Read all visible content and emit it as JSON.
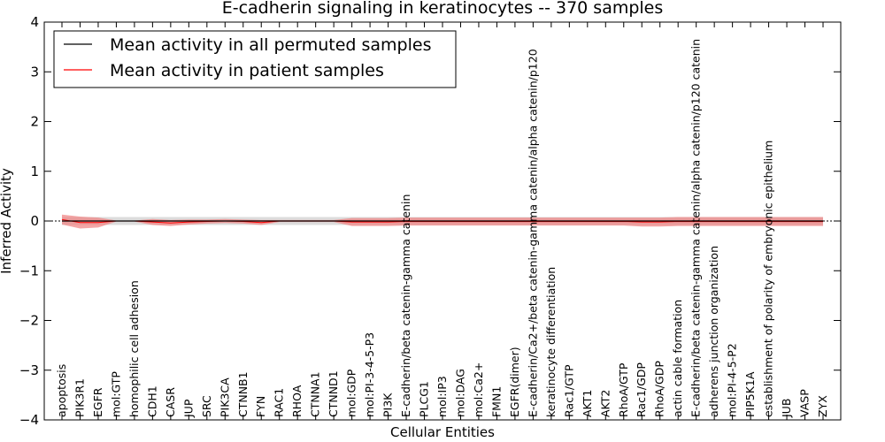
{
  "chart_data": {
    "type": "line",
    "title": "E-cadherin signaling in keratinocytes -- 370 samples",
    "xlabel": "Cellular Entities",
    "ylabel": "Inferred Activity",
    "ylim": [
      -4,
      4
    ],
    "yticks": [
      -4,
      -3,
      -2,
      -1,
      0,
      1,
      2,
      3,
      4
    ],
    "legend_position": "top-left",
    "categories": [
      "apoptosis",
      "PIK3R1",
      "EGFR",
      "mol:GTP",
      "homophilic cell adhesion",
      "CDH1",
      "CASR",
      "JUP",
      "SRC",
      "PIK3CA",
      "CTNNB1",
      "FYN",
      "RAC1",
      "RHOA",
      "CTNNA1",
      "CTNND1",
      "mol:GDP",
      "mol:PI-3-4-5-P3",
      "PI3K",
      "E-cadherin/beta catenin-gamma catenin",
      "PLCG1",
      "mol:IP3",
      "mol:DAG",
      "mol:Ca2+",
      "FMN1",
      "EGFR(dimer)",
      "E-cadherin/Ca2+/beta catenin-gamma catenin/alpha catenin/p120",
      "keratinocyte differentiation",
      "Rac1/GTP",
      "AKT1",
      "AKT2",
      "RhoA/GTP",
      "Rac1/GDP",
      "RhoA/GDP",
      "actin cable formation",
      "E-cadherin/beta catenin-gamma catenin/alpha catenin/p120 catenin",
      "adherens junction organization",
      "mol:PI-4-5-P2",
      "PIP5K1A",
      "establishment of polarity of embryonic epithelium",
      "JUB",
      "VASP",
      "ZYX"
    ],
    "series": [
      {
        "name": "Mean activity in all permuted samples",
        "color": "#000000",
        "band_color": "#bfbfbf",
        "values": [
          0.0,
          0.0,
          0.0,
          0.0,
          0.0,
          0.0,
          0.0,
          0.0,
          0.0,
          0.0,
          0.0,
          0.0,
          0.0,
          0.0,
          0.0,
          0.0,
          0.0,
          0.0,
          0.0,
          0.0,
          0.0,
          0.0,
          0.0,
          0.0,
          0.0,
          0.0,
          0.0,
          0.0,
          0.0,
          0.0,
          0.0,
          0.0,
          0.0,
          0.0,
          0.0,
          0.0,
          0.0,
          0.0,
          0.0,
          0.0,
          0.0,
          0.0,
          0.0
        ],
        "band": [
          0.08,
          0.08,
          0.08,
          0.08,
          0.08,
          0.08,
          0.08,
          0.08,
          0.08,
          0.08,
          0.08,
          0.08,
          0.08,
          0.08,
          0.08,
          0.08,
          0.08,
          0.08,
          0.08,
          0.08,
          0.08,
          0.08,
          0.08,
          0.08,
          0.08,
          0.08,
          0.08,
          0.08,
          0.08,
          0.08,
          0.08,
          0.08,
          0.08,
          0.08,
          0.08,
          0.08,
          0.08,
          0.08,
          0.08,
          0.08,
          0.08,
          0.08,
          0.08
        ]
      },
      {
        "name": "Mean activity in patient samples",
        "color": "#ff0000",
        "band_color": "#f08080",
        "values": [
          0.03,
          -0.03,
          -0.03,
          0.0,
          0.0,
          -0.02,
          -0.04,
          -0.02,
          -0.01,
          0.0,
          -0.01,
          -0.03,
          0.0,
          0.0,
          0.0,
          0.0,
          -0.02,
          -0.02,
          -0.02,
          -0.01,
          -0.01,
          -0.01,
          -0.01,
          -0.01,
          -0.01,
          -0.01,
          -0.01,
          -0.01,
          -0.01,
          -0.01,
          -0.01,
          -0.01,
          -0.02,
          -0.02,
          -0.01,
          -0.01,
          -0.01,
          -0.01,
          -0.01,
          -0.01,
          -0.01,
          -0.01,
          -0.01
        ],
        "band": [
          0.1,
          0.12,
          0.1,
          0.01,
          0.01,
          0.06,
          0.06,
          0.05,
          0.04,
          0.04,
          0.04,
          0.05,
          0.02,
          0.02,
          0.02,
          0.02,
          0.08,
          0.08,
          0.08,
          0.08,
          0.08,
          0.08,
          0.08,
          0.08,
          0.08,
          0.08,
          0.08,
          0.08,
          0.08,
          0.08,
          0.08,
          0.08,
          0.09,
          0.09,
          0.09,
          0.09,
          0.09,
          0.09,
          0.09,
          0.09,
          0.09,
          0.09,
          0.09
        ]
      }
    ]
  }
}
